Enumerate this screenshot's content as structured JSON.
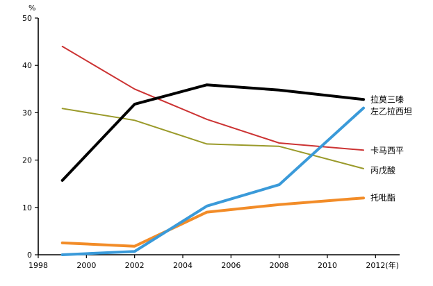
{
  "chart_data": {
    "type": "line",
    "title": "",
    "xlabel": "",
    "ylabel": "",
    "y_unit": "%",
    "x_unit": "(年)",
    "xlim": [
      1998,
      2013
    ],
    "ylim": [
      0,
      50
    ],
    "x_ticks": [
      1998,
      2000,
      2002,
      2004,
      2006,
      2008,
      2010,
      2012
    ],
    "x_tick_labels": [
      "1998",
      "2000",
      "2002",
      "2004",
      "2006",
      "2008",
      "2010",
      "2012"
    ],
    "y_ticks": [
      0,
      10,
      20,
      30,
      40,
      50
    ],
    "y_tick_labels": [
      "0",
      "10",
      "20",
      "30",
      "40",
      "50"
    ],
    "grid": false,
    "legend": "inline labels at right end of each line",
    "series": [
      {
        "name": "拉莫三嗪",
        "color": "#000000",
        "points": [
          [
            1999,
            15.7
          ],
          [
            2002,
            31.8
          ],
          [
            2005,
            35.9
          ],
          [
            2008,
            34.8
          ],
          [
            2011.5,
            32.8
          ]
        ]
      },
      {
        "name": "左乙拉西坦",
        "color": "#3a9ad9",
        "points": [
          [
            1999,
            0.0
          ],
          [
            2002,
            0.7
          ],
          [
            2005,
            10.3
          ],
          [
            2008,
            14.8
          ],
          [
            2011.5,
            31.0
          ]
        ]
      },
      {
        "name": "卡马西平",
        "color": "#cc3333",
        "points": [
          [
            1999,
            44.0
          ],
          [
            2002,
            35.0
          ],
          [
            2005,
            28.6
          ],
          [
            2008,
            23.6
          ],
          [
            2011.5,
            22.1
          ]
        ]
      },
      {
        "name": "丙戊酸",
        "color": "#9a9a2a",
        "points": [
          [
            1999,
            30.9
          ],
          [
            2002,
            28.4
          ],
          [
            2005,
            23.4
          ],
          [
            2008,
            22.9
          ],
          [
            2011.5,
            18.2
          ]
        ]
      },
      {
        "name": "托吡酯",
        "color": "#f28c28",
        "points": [
          [
            1999,
            2.5
          ],
          [
            2002,
            1.8
          ],
          [
            2005,
            9.0
          ],
          [
            2008,
            10.6
          ],
          [
            2011.5,
            12.0
          ]
        ]
      }
    ]
  }
}
